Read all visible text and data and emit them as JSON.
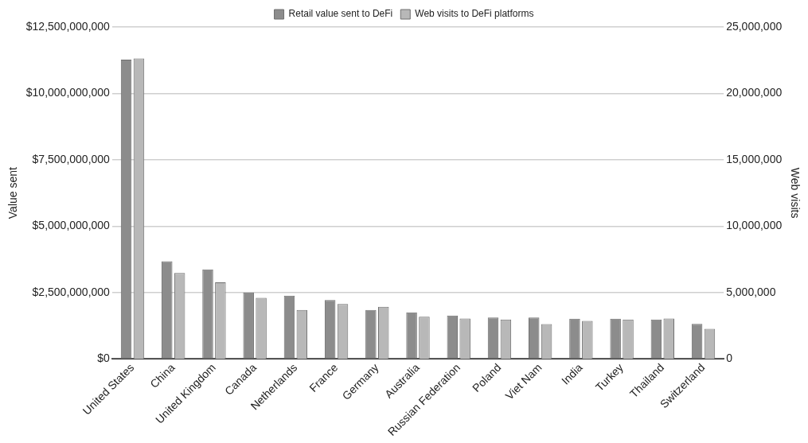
{
  "chart_data": {
    "type": "bar",
    "categories": [
      "United States",
      "China",
      "United Kingdom",
      "Canada",
      "Netherlands",
      "France",
      "Germany",
      "Australia",
      "Russian Federation",
      "Poland",
      "Viet Nam",
      "India",
      "Turkey",
      "Thailand",
      "Switzerland"
    ],
    "series": [
      {
        "name": "Retail value sent to DeFi",
        "color": "#8c8c8c",
        "values": [
          11270000000,
          3680000000,
          3370000000,
          2500000000,
          2380000000,
          2220000000,
          1840000000,
          1750000000,
          1630000000,
          1560000000,
          1560000000,
          1510000000,
          1510000000,
          1480000000,
          1320000000
        ]
      },
      {
        "name": "Web visits to DeFi platforms",
        "color": "#b8b8b8",
        "axis": "y2",
        "values": [
          22640000,
          6470000,
          5770000,
          4600000,
          3680000,
          4140000,
          3920000,
          3180000,
          3040000,
          2960000,
          2630000,
          2870000,
          2960000,
          3040000,
          2260000
        ]
      }
    ],
    "ylabel": "Value sent",
    "y2label": "Web visits",
    "ylim": [
      0,
      12500000000
    ],
    "yticks": [
      {
        "value": 0,
        "label": "$0"
      },
      {
        "value": 2500000000,
        "label": "$2,500,000,000"
      },
      {
        "value": 5000000000,
        "label": "$5,000,000,000"
      },
      {
        "value": 7500000000,
        "label": "$7,500,000,000"
      },
      {
        "value": 10000000000,
        "label": "$10,000,000,000"
      },
      {
        "value": 12500000000,
        "label": "$12,500,000,000"
      }
    ],
    "y2lim": [
      0,
      25000000
    ],
    "y2ticks": [
      {
        "value": 0,
        "label": "0"
      },
      {
        "value": 5000000,
        "label": "5,000,000"
      },
      {
        "value": 10000000,
        "label": "10,000,000"
      },
      {
        "value": 15000000,
        "label": "15,000,000"
      },
      {
        "value": 20000000,
        "label": "20,000,000"
      },
      {
        "value": 25000000,
        "label": "25,000,000"
      }
    ],
    "grid": "y",
    "legend": "top"
  }
}
